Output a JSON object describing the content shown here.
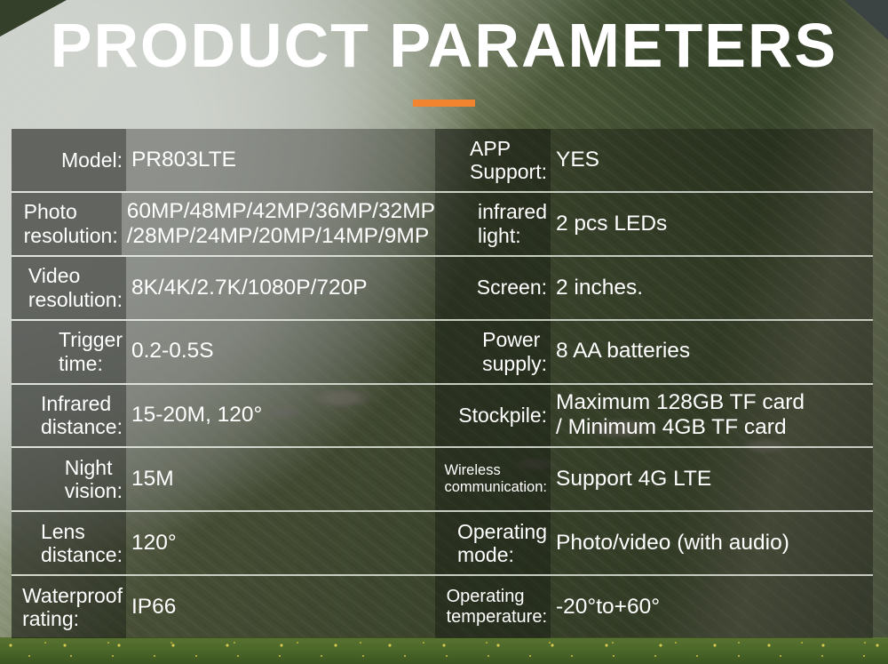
{
  "header": {
    "title": "PRODUCT PARAMETERS"
  },
  "accent_color": "#f28430",
  "spec_table": {
    "left_rows": [
      {
        "label": "Model:",
        "value": "PR803LTE"
      },
      {
        "label": "Photo\nresolution:",
        "value": "60MP/48MP/42MP/36MP/32MP\n/28MP/24MP/20MP/14MP/9MP"
      },
      {
        "label": "Video\nresolution:",
        "value": "8K/4K/2.7K/1080P/720P"
      },
      {
        "label": "Trigger\ntime:",
        "value": "0.2-0.5S"
      },
      {
        "label": "Infrared\ndistance:",
        "value": "15-20M, 120°"
      },
      {
        "label": "Night\nvision:",
        "value": "15M"
      },
      {
        "label": "Lens\ndistance:",
        "value": "120°"
      },
      {
        "label": "Waterproof\nrating:",
        "value": "IP66"
      }
    ],
    "right_rows": [
      {
        "label": "APP\nSupport:",
        "value": "YES"
      },
      {
        "label": "infrared\nlight:",
        "value": "2 pcs LEDs"
      },
      {
        "label": "Screen:",
        "value": "2 inches."
      },
      {
        "label": "Power\nsupply:",
        "value": "8 AA batteries"
      },
      {
        "label": "Stockpile:",
        "value": "Maximum 128GB TF card\n/ Minimum 4GB TF card"
      },
      {
        "label": "Wireless\ncommunication:",
        "value": "Support 4G LTE"
      },
      {
        "label": "Operating\nmode:",
        "value": "Photo/video (with audio)"
      },
      {
        "label": "Operating\ntemperature:",
        "value": "-20°to+60°"
      }
    ]
  }
}
